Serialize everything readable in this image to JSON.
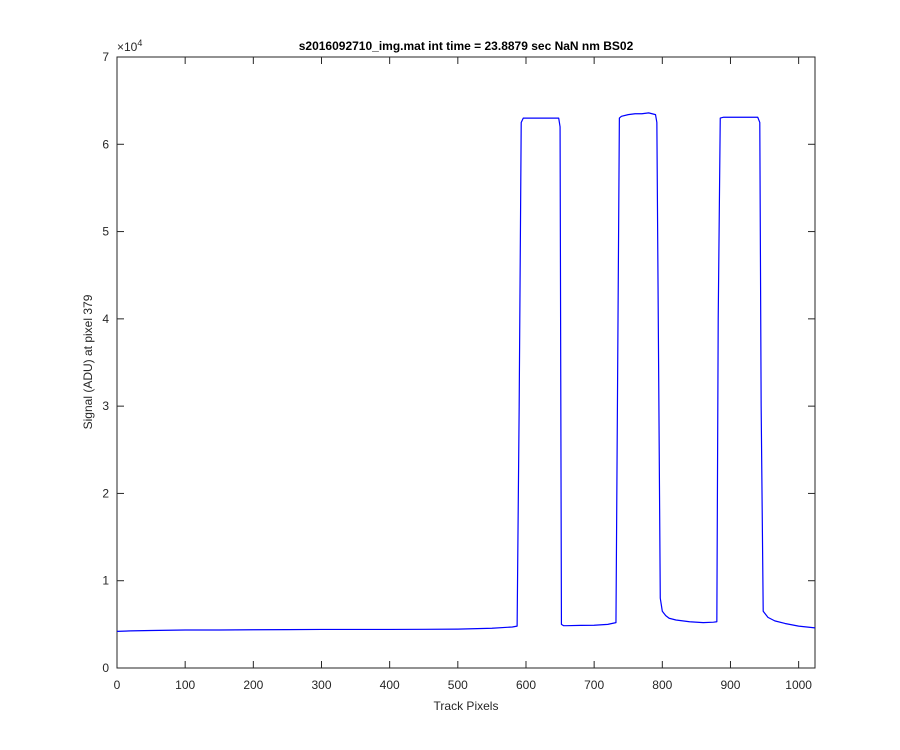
{
  "chart_data": {
    "type": "line",
    "title": "s2016092710_img.mat int time = 23.8879 sec  NaN nm BS02",
    "xlabel": "Track Pixels",
    "ylabel": "Signal (ADU) at pixel 379",
    "exponent_label": "×10",
    "exponent_power": "4",
    "xlim": [
      0,
      1024
    ],
    "ylim": [
      0,
      70000
    ],
    "x_ticks": [
      0,
      100,
      200,
      300,
      400,
      500,
      600,
      700,
      800,
      900,
      1000
    ],
    "x_tick_labels": [
      "0",
      "100",
      "200",
      "300",
      "400",
      "500",
      "600",
      "700",
      "800",
      "900",
      "1000"
    ],
    "y_ticks": [
      0,
      10000,
      20000,
      30000,
      40000,
      50000,
      60000,
      70000
    ],
    "y_tick_labels": [
      "0",
      "1",
      "2",
      "3",
      "4",
      "5",
      "6",
      "7"
    ],
    "grid": false,
    "series_color": "#0000ff",
    "axis_color": "#262626",
    "series": [
      {
        "x": [
          0,
          20,
          50,
          100,
          150,
          200,
          250,
          300,
          350,
          400,
          450,
          500,
          550,
          580,
          587,
          590,
          593,
          596,
          600,
          620,
          640,
          648,
          650,
          652,
          655,
          660,
          680,
          700,
          720,
          732,
          735,
          737,
          740,
          750,
          760,
          770,
          780,
          790,
          792,
          795,
          797,
          800,
          805,
          810,
          820,
          840,
          860,
          875,
          880,
          882,
          885,
          890,
          900,
          920,
          940,
          943,
          945,
          948,
          955,
          965,
          980,
          1000,
          1024
        ],
        "y": [
          4200,
          4250,
          4300,
          4350,
          4350,
          4380,
          4400,
          4420,
          4420,
          4420,
          4430,
          4450,
          4550,
          4700,
          4800,
          30000,
          62500,
          63000,
          63000,
          63000,
          63000,
          63000,
          62000,
          5000,
          4850,
          4850,
          4880,
          4900,
          5000,
          5200,
          40000,
          63000,
          63200,
          63400,
          63500,
          63500,
          63600,
          63400,
          62500,
          30000,
          8000,
          6500,
          6000,
          5700,
          5500,
          5300,
          5200,
          5250,
          5300,
          40000,
          63000,
          63100,
          63100,
          63100,
          63100,
          62500,
          30000,
          6500,
          5800,
          5400,
          5100,
          4800,
          4600
        ]
      }
    ]
  }
}
